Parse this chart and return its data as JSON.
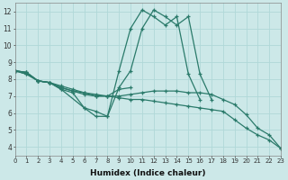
{
  "xlabel": "Humidex (Indice chaleur)",
  "xlim": [
    0,
    23
  ],
  "ylim": [
    3.5,
    12.5
  ],
  "xtick_labels": [
    "0",
    "1",
    "2",
    "3",
    "4",
    "5",
    "6",
    "7",
    "8",
    "9",
    "10",
    "11",
    "12",
    "13",
    "14",
    "15",
    "16",
    "17",
    "18",
    "19",
    "20",
    "21",
    "22",
    "23"
  ],
  "ytick_values": [
    4,
    5,
    6,
    7,
    8,
    9,
    10,
    11,
    12
  ],
  "background_color": "#cce8e8",
  "grid_color": "#b0d8d8",
  "line_color": "#2a7a6a",
  "lines": [
    {
      "x": [
        0,
        1,
        2,
        3,
        4,
        6,
        7,
        8,
        9,
        10,
        11,
        12,
        13,
        14,
        15,
        16,
        17
      ],
      "y": [
        8.5,
        8.4,
        7.9,
        7.8,
        7.4,
        6.3,
        6.1,
        5.8,
        8.5,
        11.0,
        12.1,
        11.7,
        11.2,
        11.7,
        8.3,
        6.8,
        null
      ]
    },
    {
      "x": [
        0,
        1,
        2,
        3,
        4,
        5,
        6,
        7,
        8,
        9,
        10,
        11,
        12,
        13,
        14,
        15,
        16,
        17
      ],
      "y": [
        8.5,
        8.4,
        7.9,
        7.8,
        7.4,
        7.2,
        6.3,
        5.8,
        5.8,
        7.5,
        8.5,
        11.0,
        12.1,
        11.7,
        11.2,
        11.7,
        8.3,
        6.8
      ]
    },
    {
      "x": [
        0,
        1,
        2,
        3,
        4,
        5,
        6,
        7,
        8,
        9,
        10
      ],
      "y": [
        8.5,
        8.4,
        7.9,
        7.8,
        7.5,
        7.3,
        7.1,
        7.0,
        7.0,
        7.4,
        7.5
      ]
    },
    {
      "x": [
        0,
        1,
        2,
        3,
        4,
        5,
        6,
        7,
        8,
        9,
        10,
        11,
        12,
        13,
        14,
        15,
        16,
        17,
        18,
        19,
        20,
        21,
        22,
        23
      ],
      "y": [
        8.5,
        8.3,
        7.9,
        7.8,
        7.6,
        7.4,
        7.2,
        7.1,
        7.0,
        6.9,
        6.8,
        6.8,
        6.7,
        6.6,
        6.5,
        6.4,
        6.3,
        6.2,
        6.1,
        5.6,
        5.1,
        4.7,
        4.4,
        3.9
      ]
    },
    {
      "x": [
        0,
        1,
        2,
        3,
        4,
        5,
        6,
        7,
        8,
        9,
        10,
        11,
        12,
        13,
        14,
        15,
        16,
        17,
        18,
        19,
        20,
        21,
        22,
        23
      ],
      "y": [
        8.5,
        8.3,
        7.9,
        7.8,
        7.5,
        7.3,
        7.2,
        7.0,
        7.0,
        7.0,
        7.1,
        7.2,
        7.3,
        7.3,
        7.3,
        7.2,
        7.2,
        7.1,
        6.8,
        6.5,
        5.9,
        5.1,
        4.7,
        3.9
      ]
    }
  ]
}
